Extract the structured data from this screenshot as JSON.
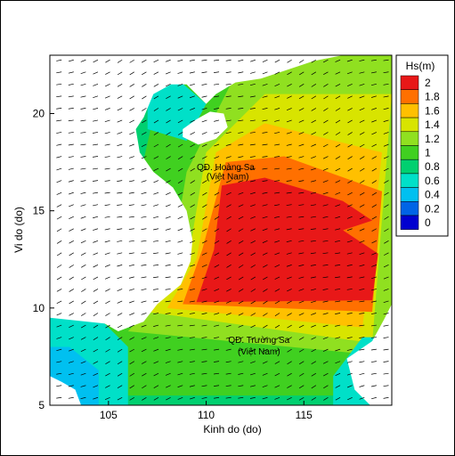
{
  "chart_data": {
    "type": "heatmap",
    "title": "",
    "xlabel": "Kinh do (do)",
    "ylabel": "Vi do (do)",
    "xlim": [
      102,
      119.5
    ],
    "ylim": [
      5,
      23
    ],
    "x_ticks": [
      105,
      110,
      115
    ],
    "y_ticks": [
      5,
      10,
      15,
      20
    ],
    "colorbar": {
      "title": "Hs(m)",
      "levels": [
        0,
        0.2,
        0.4,
        0.6,
        0.8,
        1,
        1.2,
        1.4,
        1.6,
        1.8,
        2
      ],
      "labels": [
        "2",
        "1.8",
        "1.6",
        "1.4",
        "1.2",
        "1",
        "0.8",
        "0.6",
        "0.4",
        "0.2",
        "0"
      ],
      "colors": [
        "#0000d0",
        "#0064e6",
        "#00c0f0",
        "#00e0c8",
        "#00d070",
        "#40d020",
        "#90e020",
        "#d8e400",
        "#ffc000",
        "#ff7000",
        "#e81818"
      ]
    },
    "annotations": [
      {
        "text": "QĐ. Hoàng Sa",
        "lon": 111.0,
        "lat": 17.1
      },
      {
        "text": "(Việt Nam)",
        "lon": 111.1,
        "lat": 16.6
      },
      {
        "text": "QĐ. Trường Sa",
        "lon": 112.7,
        "lat": 8.2
      },
      {
        "text": "(Việt Nam)",
        "lon": 112.7,
        "lat": 7.6
      }
    ],
    "grid": false,
    "wave_direction": "north-east to south-west (NE monsoon)",
    "max_hs_region": {
      "lon": [
        110.5,
        118.5
      ],
      "lat": [
        10.2,
        16.5
      ],
      "hs": 2.0
    }
  }
}
